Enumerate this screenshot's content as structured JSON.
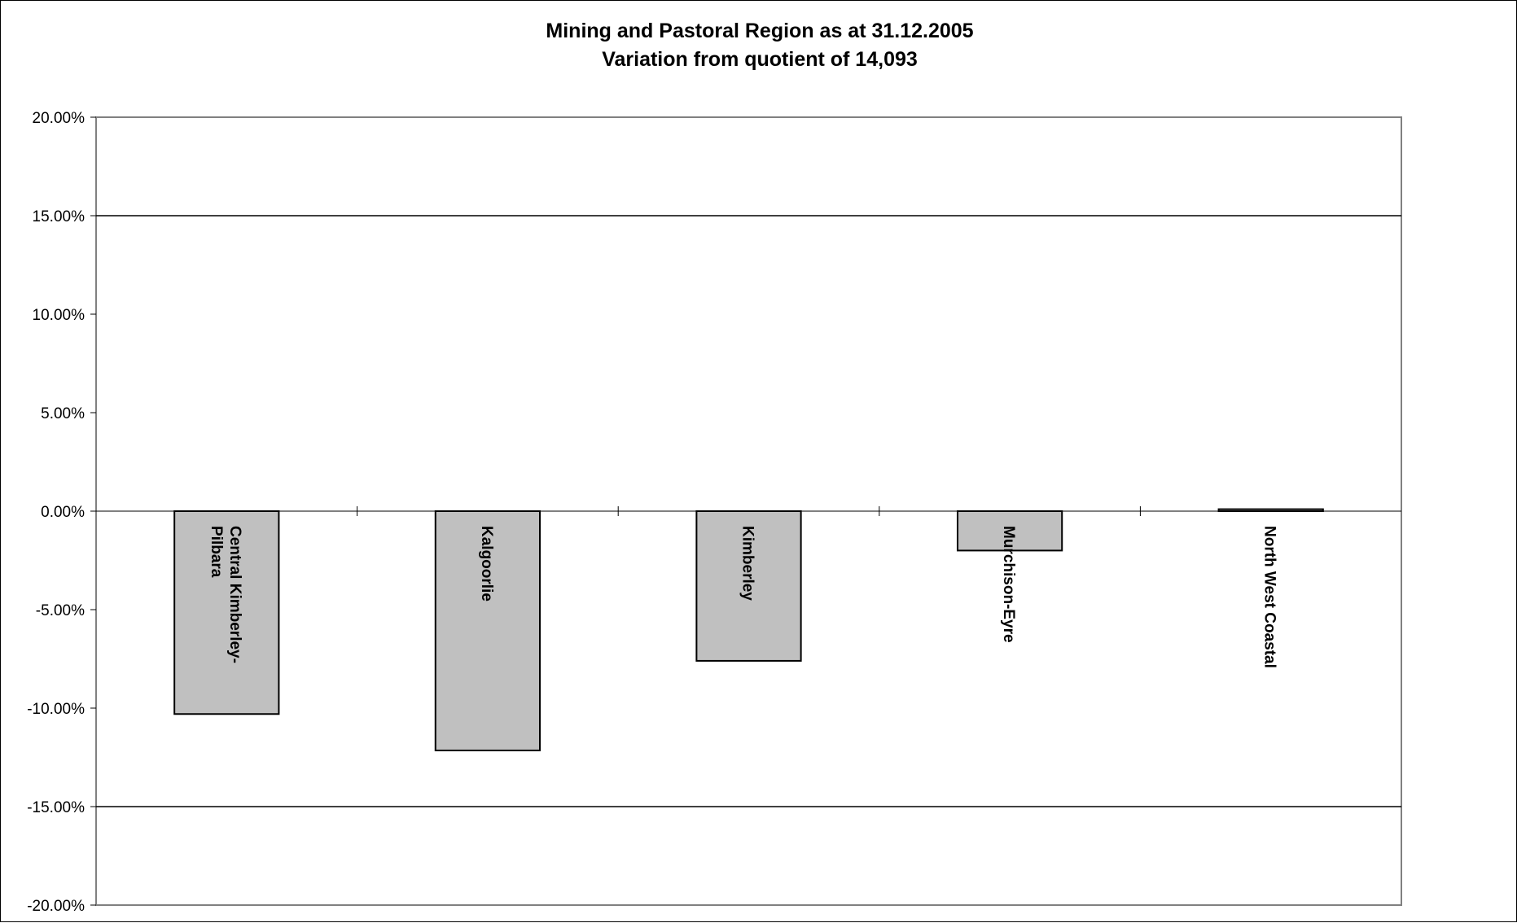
{
  "chart_data": {
    "type": "bar",
    "title": "Mining and Pastoral Region as at 31.12.2005",
    "subtitle": "Variation from quotient of 14,093",
    "categories": [
      "Central Kimberley-Pilbara",
      "Kalgoorlie",
      "Kimberley",
      "Murchison-Eyre",
      "North West Coastal"
    ],
    "category_label_lines": [
      [
        "Central Kimberley-",
        "Pilbara"
      ],
      [
        "Kalgoorlie"
      ],
      [
        "Kimberley"
      ],
      [
        "Murchison-Eyre"
      ],
      [
        "North West Coastal"
      ]
    ],
    "values": [
      -10.3,
      -12.15,
      -7.6,
      -2.0,
      0.1
    ],
    "ylim": [
      -20,
      20
    ],
    "yticks": [
      20,
      15,
      10,
      5,
      0,
      -5,
      -10,
      -15,
      -20
    ],
    "ytick_labels": [
      "20.00%",
      "15.00%",
      "10.00%",
      "5.00%",
      "0.00%",
      "-5.00%",
      "-10.00%",
      "-15.00%",
      "-20.00%"
    ],
    "reference_lines": [
      15,
      -15
    ],
    "xlabel": "",
    "ylabel": "",
    "grid": false,
    "legend": "none",
    "colors": {
      "bar_fill": "#c0c0c0",
      "bar_stroke": "#000000",
      "plot_border": "#808080",
      "reference_line": "#000000"
    }
  }
}
